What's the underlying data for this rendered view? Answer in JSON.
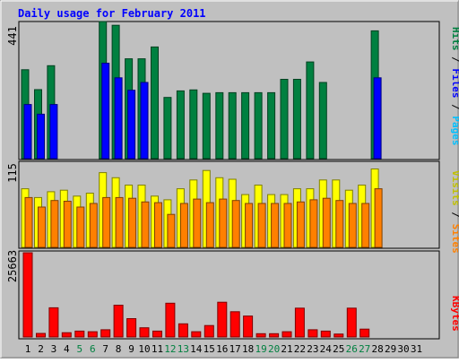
{
  "chart_data": [
    {
      "type": "bar",
      "title": "Daily usage for February 2011",
      "categories": [
        "1",
        "2",
        "3",
        "4",
        "5",
        "6",
        "7",
        "8",
        "9",
        "10",
        "11",
        "12",
        "13",
        "14",
        "15",
        "16",
        "17",
        "18",
        "19",
        "20",
        "21",
        "22",
        "23",
        "24",
        "25",
        "26",
        "27",
        "28",
        "29",
        "30",
        "31"
      ],
      "weekend_days": [
        "5",
        "6",
        "12",
        "13",
        "19",
        "20",
        "26",
        "27"
      ],
      "panel": "top",
      "ymax_label": "441",
      "ylim": [
        0,
        441
      ],
      "legend": [
        "Pages",
        "/",
        "Files",
        "/",
        "Hits"
      ],
      "colors": {
        "hits": "#008040",
        "files": "#0000ff",
        "pages": "#00c0ff"
      },
      "series": [
        {
          "name": "Hits",
          "values": [
            286,
            222,
            299,
            0,
            0,
            0,
            441,
            429,
            321,
            321,
            359,
            197,
            218,
            221,
            210,
            212,
            212,
            212,
            212,
            212,
            255,
            255,
            311,
            245,
            0,
            0,
            0,
            411,
            0,
            0,
            0
          ]
        },
        {
          "name": "Files",
          "values": [
            174,
            143,
            174,
            0,
            0,
            0,
            307,
            260,
            220,
            245,
            0,
            0,
            0,
            0,
            0,
            0,
            0,
            0,
            0,
            0,
            0,
            0,
            0,
            0,
            0,
            0,
            0,
            260,
            0,
            0,
            0
          ]
        },
        {
          "name": "Pages",
          "values": [
            0,
            0,
            0,
            0,
            0,
            0,
            0,
            0,
            0,
            0,
            0,
            0,
            0,
            0,
            0,
            0,
            0,
            0,
            0,
            0,
            0,
            0,
            0,
            0,
            0,
            0,
            0,
            0,
            0,
            0,
            0
          ]
        }
      ]
    },
    {
      "type": "bar",
      "panel": "middle",
      "ymax_label": "115",
      "ylim": [
        0,
        115
      ],
      "legend": [
        "Sites",
        "/",
        "Visits"
      ],
      "colors": {
        "visits": "#ffff00",
        "sites": "#ff8000"
      },
      "series": [
        {
          "name": "Visits",
          "values": [
            80,
            68,
            76,
            78,
            70,
            74,
            102,
            95,
            85,
            85,
            70,
            65,
            80,
            92,
            105,
            95,
            93,
            72,
            85,
            72,
            72,
            80,
            80,
            92,
            92,
            78,
            85,
            107,
            0,
            0,
            0
          ]
        },
        {
          "name": "Sites",
          "values": [
            68,
            55,
            64,
            63,
            55,
            60,
            68,
            68,
            67,
            62,
            61,
            45,
            60,
            66,
            61,
            66,
            64,
            60,
            60,
            60,
            60,
            62,
            65,
            67,
            64,
            60,
            60,
            80,
            0,
            0,
            0
          ]
        }
      ]
    },
    {
      "type": "bar",
      "panel": "bottom",
      "ymax_label": "25663",
      "ylim": [
        0,
        25663
      ],
      "legend": [
        "KBytes"
      ],
      "colors": {
        "kbytes": "#ff0000"
      },
      "series": [
        {
          "name": "KBytes",
          "values": [
            25663,
            1100,
            8900,
            1300,
            1800,
            1600,
            2200,
            9700,
            5600,
            2800,
            1800,
            10300,
            4000,
            1600,
            3500,
            10600,
            7700,
            6400,
            1000,
            1000,
            1600,
            8800,
            2200,
            1800,
            900,
            8800,
            2400,
            0,
            0,
            0,
            0
          ]
        }
      ]
    }
  ]
}
